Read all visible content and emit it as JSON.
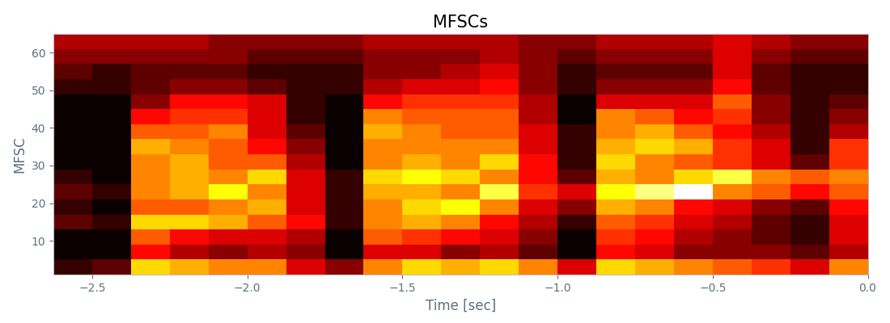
{
  "chart_data": {
    "type": "heatmap",
    "title": "MFSCs",
    "x_label": "Time [sec]",
    "y_label": "MFSC",
    "color": "hot",
    "xlim": [
      -2.625,
      0
    ],
    "ylim": [
      1,
      65
    ],
    "xticks": [
      {
        "value": -2.5,
        "label": "−2.5"
      },
      {
        "value": -2.0,
        "label": "−2.0"
      },
      {
        "value": -1.5,
        "label": "−1.5"
      },
      {
        "value": -1.0,
        "label": "−1.0"
      },
      {
        "value": -0.5,
        "label": "−0.5"
      },
      {
        "value": 0,
        "label": "0.0"
      }
    ],
    "yticks": [
      10,
      20,
      30,
      40,
      50,
      60
    ],
    "cells": [
      [
        0.1,
        0.15,
        0.6,
        0.55,
        0.5,
        0.5,
        0.3,
        0.2,
        0.5,
        0.6,
        0.55,
        0.6,
        0.5,
        0.3,
        0.6,
        0.55,
        0.5,
        0.45,
        0.4,
        0.3,
        0.5
      ],
      [
        0.05,
        0.05,
        0.35,
        0.25,
        0.2,
        0.25,
        0.2,
        0.05,
        0.3,
        0.3,
        0.2,
        0.25,
        0.15,
        0.05,
        0.35,
        0.3,
        0.2,
        0.2,
        0.2,
        0.15,
        0.25
      ],
      [
        0.05,
        0.05,
        0.45,
        0.35,
        0.3,
        0.3,
        0.25,
        0.05,
        0.45,
        0.4,
        0.35,
        0.3,
        0.2,
        0.05,
        0.4,
        0.35,
        0.25,
        0.2,
        0.15,
        0.1,
        0.3
      ],
      [
        0.15,
        0.1,
        0.6,
        0.6,
        0.55,
        0.45,
        0.35,
        0.1,
        0.5,
        0.55,
        0.5,
        0.35,
        0.25,
        0.1,
        0.45,
        0.4,
        0.3,
        0.25,
        0.15,
        0.1,
        0.3
      ],
      [
        0.1,
        0.05,
        0.45,
        0.45,
        0.5,
        0.55,
        0.3,
        0.1,
        0.5,
        0.6,
        0.65,
        0.5,
        0.3,
        0.2,
        0.55,
        0.5,
        0.35,
        0.3,
        0.2,
        0.15,
        0.35
      ],
      [
        0.15,
        0.1,
        0.5,
        0.55,
        0.65,
        0.5,
        0.3,
        0.1,
        0.55,
        0.55,
        0.5,
        0.7,
        0.4,
        0.3,
        0.65,
        0.75,
        0.85,
        0.5,
        0.45,
        0.35,
        0.45
      ],
      [
        0.1,
        0.05,
        0.5,
        0.55,
        0.5,
        0.6,
        0.3,
        0.1,
        0.6,
        0.65,
        0.6,
        0.5,
        0.35,
        0.15,
        0.55,
        0.5,
        0.6,
        0.7,
        0.5,
        0.45,
        0.5
      ],
      [
        0.05,
        0.05,
        0.5,
        0.55,
        0.45,
        0.45,
        0.25,
        0.05,
        0.5,
        0.55,
        0.5,
        0.6,
        0.35,
        0.1,
        0.6,
        0.5,
        0.45,
        0.4,
        0.3,
        0.15,
        0.4
      ],
      [
        0.05,
        0.05,
        0.55,
        0.5,
        0.45,
        0.35,
        0.2,
        0.05,
        0.5,
        0.5,
        0.5,
        0.5,
        0.3,
        0.1,
        0.55,
        0.6,
        0.55,
        0.4,
        0.3,
        0.1,
        0.4
      ],
      [
        0.05,
        0.05,
        0.45,
        0.45,
        0.5,
        0.3,
        0.15,
        0.05,
        0.55,
        0.5,
        0.45,
        0.45,
        0.3,
        0.1,
        0.5,
        0.55,
        0.45,
        0.35,
        0.25,
        0.1,
        0.25
      ],
      [
        0.05,
        0.05,
        0.35,
        0.4,
        0.4,
        0.3,
        0.1,
        0.05,
        0.5,
        0.45,
        0.45,
        0.45,
        0.25,
        0.05,
        0.5,
        0.45,
        0.35,
        0.4,
        0.2,
        0.1,
        0.2
      ],
      [
        0.05,
        0.05,
        0.2,
        0.35,
        0.35,
        0.3,
        0.1,
        0.05,
        0.35,
        0.4,
        0.4,
        0.4,
        0.25,
        0.05,
        0.3,
        0.3,
        0.3,
        0.45,
        0.2,
        0.1,
        0.15
      ],
      [
        0.1,
        0.1,
        0.15,
        0.2,
        0.2,
        0.15,
        0.1,
        0.1,
        0.25,
        0.3,
        0.3,
        0.35,
        0.2,
        0.1,
        0.2,
        0.2,
        0.2,
        0.35,
        0.15,
        0.1,
        0.1
      ],
      [
        0.15,
        0.1,
        0.15,
        0.15,
        0.15,
        0.1,
        0.1,
        0.1,
        0.2,
        0.2,
        0.25,
        0.3,
        0.2,
        0.1,
        0.15,
        0.15,
        0.15,
        0.3,
        0.15,
        0.1,
        0.1
      ],
      [
        0.2,
        0.2,
        0.2,
        0.2,
        0.2,
        0.15,
        0.15,
        0.15,
        0.2,
        0.2,
        0.2,
        0.25,
        0.2,
        0.15,
        0.2,
        0.2,
        0.2,
        0.3,
        0.2,
        0.15,
        0.15
      ],
      [
        0.25,
        0.25,
        0.25,
        0.25,
        0.2,
        0.2,
        0.2,
        0.2,
        0.25,
        0.25,
        0.25,
        0.25,
        0.2,
        0.2,
        0.25,
        0.25,
        0.25,
        0.3,
        0.25,
        0.2,
        0.2
      ]
    ]
  }
}
